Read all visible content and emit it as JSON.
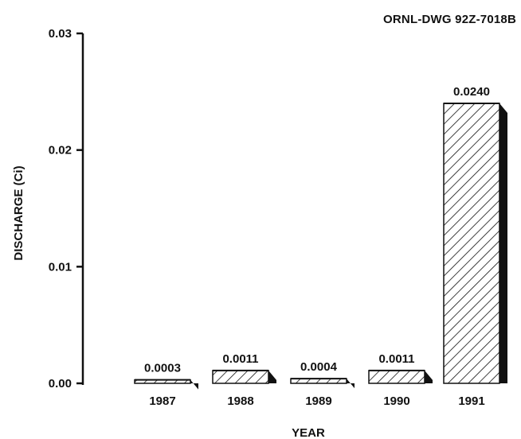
{
  "drawing_number": "ORNL-DWG 92Z-7018B",
  "chart_data": {
    "type": "bar",
    "title": "",
    "xlabel": "YEAR",
    "ylabel": "DISCHARGE (Ci)",
    "categories": [
      "1987",
      "1988",
      "1989",
      "1990",
      "1991"
    ],
    "values": [
      0.0003,
      0.0011,
      0.0004,
      0.0011,
      0.024
    ],
    "value_labels": [
      "0.0003",
      "0.0011",
      "0.0004",
      "0.0011",
      "0.0240"
    ],
    "ylim": [
      0,
      0.03
    ],
    "yticks": [
      0.0,
      0.01,
      0.02,
      0.03
    ],
    "ytick_labels": [
      "0.00",
      "0.01",
      "0.02",
      "0.03"
    ],
    "grid": false,
    "bar_style": "hatched 3-D bars",
    "colors": {
      "ink": "#111111",
      "background": "#ffffff"
    }
  }
}
